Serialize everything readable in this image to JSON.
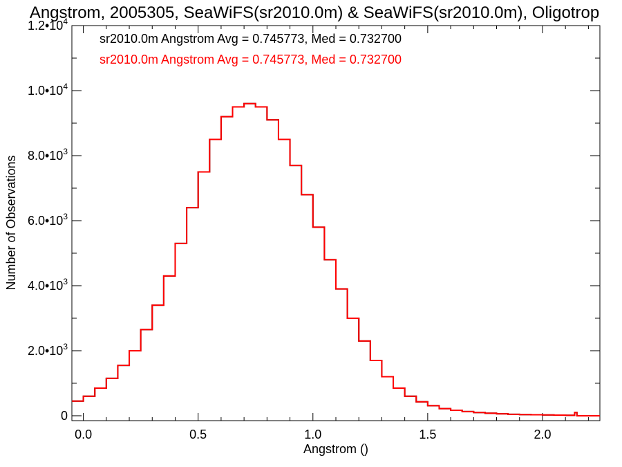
{
  "chart_data": {
    "type": "line",
    "title": "Angstrom, 2005305, SeaWiFS(sr2010.0m) & SeaWiFS(sr2010.0m), Oligotrop",
    "xlabel": "Angstrom ()",
    "ylabel": "Number of Observations",
    "xlim": [
      -0.05,
      2.25
    ],
    "ylim": [
      -150,
      12000
    ],
    "x_ticks": [
      {
        "value": 0.0,
        "label": "0.0"
      },
      {
        "value": 0.5,
        "label": "0.5"
      },
      {
        "value": 1.0,
        "label": "1.0"
      },
      {
        "value": 1.5,
        "label": "1.5"
      },
      {
        "value": 2.0,
        "label": "2.0"
      }
    ],
    "y_ticks": [
      {
        "value": 0,
        "label": "0",
        "exp": ""
      },
      {
        "value": 2000,
        "label": "2.0•10",
        "exp": "3"
      },
      {
        "value": 4000,
        "label": "4.0•10",
        "exp": "3"
      },
      {
        "value": 6000,
        "label": "6.0•10",
        "exp": "3"
      },
      {
        "value": 8000,
        "label": "8.0•10",
        "exp": "3"
      },
      {
        "value": 10000,
        "label": "1.0•10",
        "exp": "4"
      },
      {
        "value": 12000,
        "label": "1.2•10",
        "exp": "4"
      }
    ],
    "grid": false,
    "annotations": [
      {
        "text": "sr2010.0m Angstrom Avg = 0.745773, Med = 0.732700",
        "color": "#000000"
      },
      {
        "text": "sr2010.0m Angstrom Avg = 0.745773, Med = 0.732700",
        "color": "#ff0000"
      }
    ],
    "series": [
      {
        "color": "#000000",
        "step": "post",
        "x": [
          -0.05,
          0.0,
          0.05,
          0.1,
          0.15,
          0.2,
          0.25,
          0.3,
          0.35,
          0.4,
          0.45,
          0.5,
          0.55,
          0.6,
          0.65,
          0.7,
          0.75,
          0.8,
          0.85,
          0.9,
          0.95,
          1.0,
          1.05,
          1.1,
          1.15,
          1.2,
          1.25,
          1.3,
          1.35,
          1.4,
          1.45,
          1.5,
          1.55,
          1.6,
          1.65,
          1.7,
          1.75,
          1.8,
          1.85,
          1.9,
          1.95,
          2.0,
          2.05,
          2.1,
          2.14,
          2.15,
          2.25
        ],
        "y": [
          450,
          600,
          850,
          1150,
          1550,
          2000,
          2650,
          3400,
          4300,
          5300,
          6400,
          7500,
          8500,
          9200,
          9500,
          9600,
          9500,
          9100,
          8500,
          7700,
          6800,
          5800,
          4800,
          3900,
          3000,
          2300,
          1700,
          1200,
          850,
          600,
          430,
          310,
          220,
          170,
          130,
          100,
          80,
          60,
          45,
          35,
          30,
          25,
          20,
          15,
          100,
          0,
          0
        ]
      },
      {
        "color": "#ff0000",
        "step": "post",
        "x": [
          -0.05,
          0.0,
          0.05,
          0.1,
          0.15,
          0.2,
          0.25,
          0.3,
          0.35,
          0.4,
          0.45,
          0.5,
          0.55,
          0.6,
          0.65,
          0.7,
          0.75,
          0.8,
          0.85,
          0.9,
          0.95,
          1.0,
          1.05,
          1.1,
          1.15,
          1.2,
          1.25,
          1.3,
          1.35,
          1.4,
          1.45,
          1.5,
          1.55,
          1.6,
          1.65,
          1.7,
          1.75,
          1.8,
          1.85,
          1.9,
          1.95,
          2.0,
          2.05,
          2.1,
          2.14,
          2.15,
          2.25
        ],
        "y": [
          450,
          600,
          850,
          1150,
          1550,
          2000,
          2650,
          3400,
          4300,
          5300,
          6400,
          7500,
          8500,
          9200,
          9500,
          9600,
          9500,
          9100,
          8500,
          7700,
          6800,
          5800,
          4800,
          3900,
          3000,
          2300,
          1700,
          1200,
          850,
          600,
          430,
          310,
          220,
          170,
          130,
          100,
          80,
          60,
          45,
          35,
          30,
          25,
          20,
          15,
          100,
          0,
          0
        ]
      }
    ]
  }
}
